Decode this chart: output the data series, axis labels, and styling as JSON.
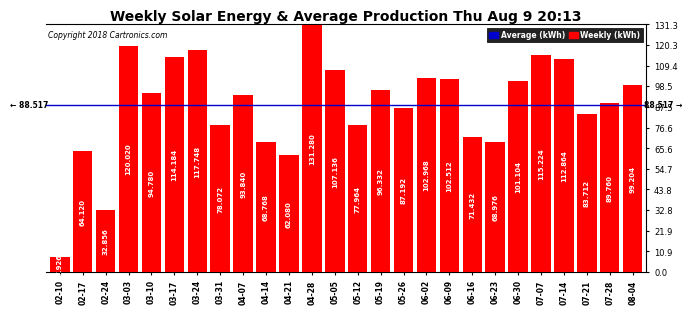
{
  "title": "Weekly Solar Energy & Average Production Thu Aug 9 20:13",
  "copyright": "Copyright 2018 Cartronics.com",
  "categories": [
    "02-10",
    "02-17",
    "02-24",
    "03-03",
    "03-10",
    "03-17",
    "03-24",
    "03-31",
    "04-07",
    "04-14",
    "04-21",
    "04-28",
    "05-05",
    "05-12",
    "05-19",
    "05-26",
    "06-02",
    "06-09",
    "06-16",
    "06-23",
    "06-30",
    "07-07",
    "07-14",
    "07-21",
    "07-28",
    "08-04"
  ],
  "values": [
    7.926,
    64.12,
    32.856,
    120.02,
    94.78,
    114.184,
    117.748,
    78.072,
    93.84,
    68.768,
    62.08,
    131.28,
    107.136,
    77.964,
    96.332,
    87.192,
    102.968,
    102.512,
    71.432,
    68.976,
    101.104,
    115.224,
    112.864,
    83.712,
    89.76,
    99.204
  ],
  "bar_color": "#ff0000",
  "average_value": 88.517,
  "average_line_color": "#0000cc",
  "average_label": "Average (kWh)",
  "weekly_label": "Weekly (kWh)",
  "ylim": [
    0,
    131.3
  ],
  "yticks": [
    0.0,
    10.9,
    21.9,
    32.8,
    43.8,
    54.7,
    65.6,
    76.6,
    87.5,
    98.5,
    109.4,
    120.3,
    131.3
  ],
  "grid_color": "#ffffff",
  "background_color": "#ffffff",
  "plot_background": "#ffffff",
  "bar_label_color": "#ffffff",
  "bar_label_fontsize": 5.0,
  "title_fontsize": 10,
  "copyright_fontsize": 5.5,
  "avg_annotation_left": "← 88.517",
  "avg_annotation_right": "88.517 →",
  "avg_label_fontsize": 5.5,
  "legend_avg_color": "#0000cc",
  "legend_weekly_color": "#ff0000"
}
